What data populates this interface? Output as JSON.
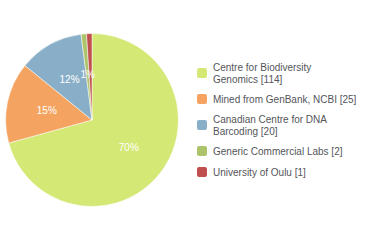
{
  "chart_data": {
    "type": "pie",
    "categories": [
      "Centre for Biodiversity\nGenomics [114]",
      "Mined from GenBank, NCBI [25]",
      "Canadian Centre for DNA\nBarcoding [20]",
      "Generic Commercial Labs [2]",
      "University of Oulu [1]"
    ],
    "values": [
      70,
      15,
      12,
      1,
      1
    ],
    "value_labels": [
      "70%",
      "15%",
      "12%",
      "1%",
      null
    ],
    "colors": [
      "#d4e876",
      "#f4a460",
      "#89afc8",
      "#aec46a",
      "#c0504d"
    ],
    "data_labels": true,
    "legend": "right"
  }
}
